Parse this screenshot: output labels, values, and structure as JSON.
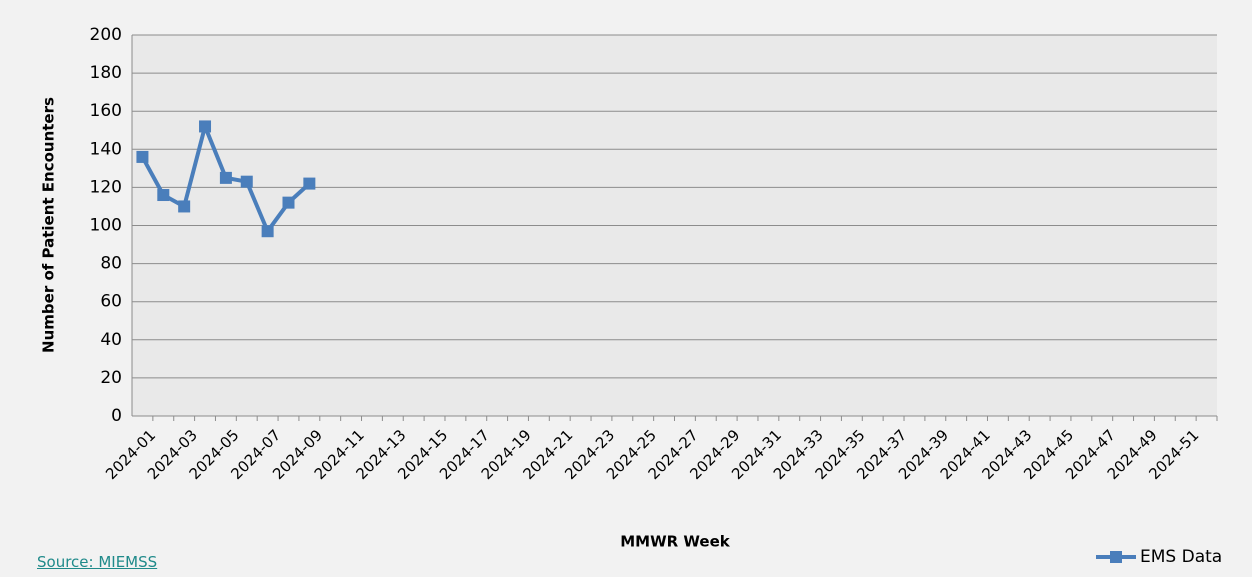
{
  "chart_data": {
    "type": "line",
    "y_label": "Number of Patient Encounters",
    "x_label": "MMWR Week",
    "categories": [
      "2024-01",
      null,
      "2024-03",
      null,
      "2024-05",
      null,
      "2024-07",
      null,
      "2024-09",
      null,
      "2024-11",
      null,
      "2024-13",
      null,
      "2024-15",
      null,
      "2024-17",
      null,
      "2024-19",
      null,
      "2024-21",
      null,
      "2024-23",
      null,
      "2024-25",
      null,
      "2024-27",
      null,
      "2024-29",
      null,
      "2024-31",
      null,
      "2024-33",
      null,
      "2024-35",
      null,
      "2024-37",
      null,
      "2024-39",
      null,
      "2024-41",
      null,
      "2024-43",
      null,
      "2024-45",
      null,
      "2024-47",
      null,
      "2024-49",
      null,
      "2024-51",
      null
    ],
    "series": [
      {
        "name": "EMS Data",
        "color": "#4a7ebb",
        "values": [
          136,
          116,
          110,
          152,
          125,
          123,
          97,
          112,
          122,
          null,
          null,
          null,
          null,
          null,
          null,
          null,
          null,
          null,
          null,
          null,
          null,
          null,
          null,
          null,
          null,
          null,
          null,
          null,
          null,
          null,
          null,
          null,
          null,
          null,
          null,
          null,
          null,
          null,
          null,
          null,
          null,
          null,
          null,
          null,
          null,
          null,
          null,
          null,
          null,
          null,
          null,
          null
        ]
      }
    ],
    "ylim": [
      0,
      200
    ],
    "yticks": [
      0,
      20,
      40,
      60,
      80,
      100,
      120,
      140,
      160,
      180,
      200
    ],
    "grid": true,
    "legend": "bottom-right"
  },
  "source": "Source: MIEMSS"
}
